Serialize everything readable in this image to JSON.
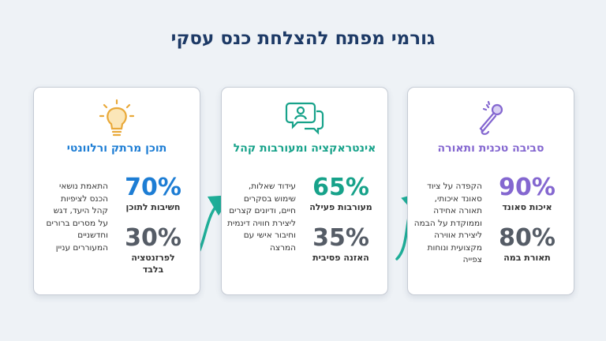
{
  "header": {
    "title": "גורמי מפתח להצלחת כנס עסקי"
  },
  "cards": [
    {
      "heading": "סביבה טכנית ותאורה",
      "stats": [
        {
          "value": "90%",
          "label": [
            "איכות סאונד"
          ]
        },
        {
          "value": "80%",
          "label": [
            "תאורת במה"
          ]
        }
      ],
      "description": [
        "הקפדה על ציוד",
        "סאונד איכותי,",
        "תאורה אחידה",
        "וממוקדת על הבמה",
        "ליצירת אווירה",
        "מקצועית ונוחות",
        "צפייה"
      ]
    },
    {
      "heading": "אינטראקציה ומעורבות קהל",
      "stats": [
        {
          "value": "65%",
          "label": [
            "מעורבות פעילה"
          ]
        },
        {
          "value": "35%",
          "label": [
            "האזנה פסיבית"
          ]
        }
      ],
      "description": [
        "עידוד שאלות,",
        "שימוש בסקרים",
        "חיים, ודיונים קצרים",
        "ליצירת חוויה דינמית",
        "וחיבור אישי עם",
        "המרצה"
      ]
    },
    {
      "heading": "תוכן מרתק ורלוונטי",
      "stats": [
        {
          "value": "70%",
          "label": [
            "חשיבות לתוכן"
          ]
        },
        {
          "value": "30%",
          "label": [
            "לפרזנטציה",
            "בלבד"
          ]
        }
      ],
      "description": [
        "התאמת נושאי",
        "הכנס לציפיות",
        "קהל היעד, דגש",
        "על מסרים ברורים",
        "וחדשניים",
        "המעוררים עניין"
      ]
    }
  ]
}
